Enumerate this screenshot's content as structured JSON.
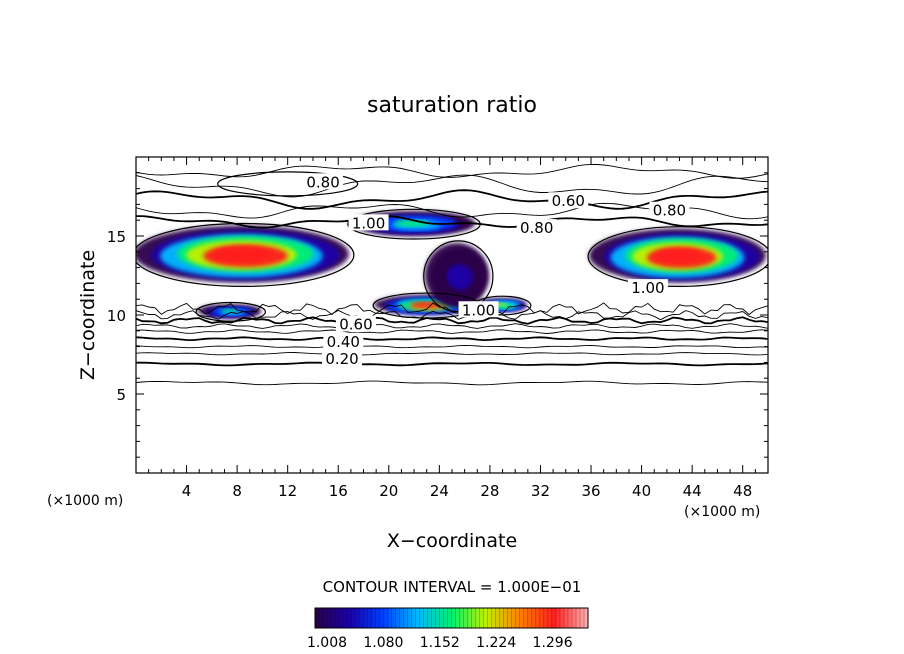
{
  "chart_data": {
    "type": "heatmap",
    "title": "saturation ratio",
    "xlabel": "X−coordinate",
    "ylabel": "Z−coordinate",
    "x_unit_left": "(×1000 m)",
    "x_unit_right": "(×1000 m)",
    "xlim": [
      0,
      50
    ],
    "ylim": [
      0,
      20
    ],
    "xticks": [
      4,
      8,
      12,
      16,
      20,
      24,
      28,
      32,
      36,
      40,
      44,
      48
    ],
    "yticks": [
      5,
      10,
      15
    ],
    "contour_interval_text": "CONTOUR INTERVAL = 1.000E−01",
    "colorbar": {
      "ticks": [
        "1.008",
        "1.080",
        "1.152",
        "1.224",
        "1.296"
      ],
      "stops": [
        "#2a0048",
        "#1a00a8",
        "#0040ff",
        "#00b8ff",
        "#00f070",
        "#c0f000",
        "#ff8000",
        "#ff2020",
        "#ffb0b0"
      ]
    },
    "contour_labels": [
      {
        "text": "0.80",
        "x": 14.8,
        "z": 18.4
      },
      {
        "text": "0.60",
        "x": 34.2,
        "z": 17.2
      },
      {
        "text": "0.80",
        "x": 42.2,
        "z": 16.6
      },
      {
        "text": "1.00",
        "x": 18.4,
        "z": 15.8
      },
      {
        "text": "0.80",
        "x": 31.7,
        "z": 15.5
      },
      {
        "text": "1.00",
        "x": 40.5,
        "z": 11.7
      },
      {
        "text": "1.00",
        "x": 27.1,
        "z": 10.3
      },
      {
        "text": "0.60",
        "x": 17.4,
        "z": 9.4
      },
      {
        "text": "0.40",
        "x": 16.4,
        "z": 8.3
      },
      {
        "text": "0.20",
        "x": 16.3,
        "z": 7.2
      }
    ],
    "supersaturated_regions": [
      {
        "x": [
          0,
          17
        ],
        "z": [
          12.0,
          15.6
        ],
        "max": 1.3
      },
      {
        "x": [
          17,
          27
        ],
        "z": [
          15.0,
          16.5
        ],
        "max": 1.15
      },
      {
        "x": [
          19,
          27
        ],
        "z": [
          10.0,
          11.2
        ],
        "max": 1.25
      },
      {
        "x": [
          23,
          28
        ],
        "z": [
          10.4,
          14.5
        ],
        "max": 1.05
      },
      {
        "x": [
          27,
          31
        ],
        "z": [
          10.2,
          11.0
        ],
        "max": 1.2
      },
      {
        "x": [
          36,
          50
        ],
        "z": [
          12.0,
          15.4
        ],
        "max": 1.3
      },
      {
        "x": [
          5,
          10
        ],
        "z": [
          9.8,
          10.6
        ],
        "max": 1.15
      }
    ]
  }
}
